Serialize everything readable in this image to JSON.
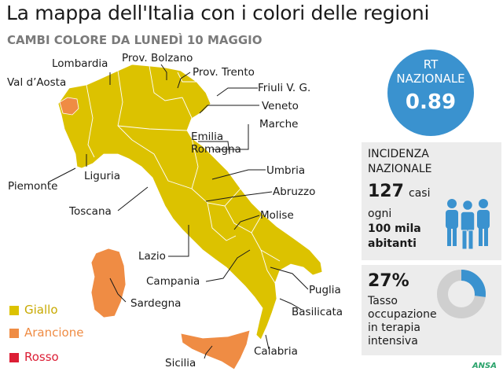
{
  "title": "La mappa dell'Italia con i colori delle regioni",
  "subtitle": "CAMBI COLORE DA LUNEDÌ 10 MAGGIO",
  "colors": {
    "giallo": "#dcc200",
    "arancione": "#ef8c44",
    "rosso": "#dc1e35",
    "accent_blue": "#3a92cf"
  },
  "regions": {
    "lombardia": "Lombardia",
    "prov_bolzano": "Prov. Bolzano",
    "val_daosta": "Val d’Aosta",
    "prov_trento": "Prov. Trento",
    "friuli": "Friuli V. G.",
    "veneto": "Veneto",
    "marche": "Marche",
    "emilia": "Emilia",
    "romagna": "Romagna",
    "liguria": "Liguria",
    "umbria": "Umbria",
    "piemonte": "Piemonte",
    "abruzzo": "Abruzzo",
    "toscana": "Toscana",
    "molise": "Molise",
    "lazio": "Lazio",
    "campania": "Campania",
    "puglia": "Puglia",
    "sardegna": "Sardegna",
    "basilicata": "Basilicata",
    "calabria": "Calabria",
    "sicilia": "Sicilia"
  },
  "rt": {
    "label_line1": "RT",
    "label_line2": "NAZIONALE",
    "value": "0.89"
  },
  "incidenza": {
    "label_line1": "INCIDENZA",
    "label_line2": "NAZIONALE",
    "value": "127",
    "unit": "casi",
    "line_ogni": "ogni",
    "line_mila": "100 mila",
    "line_abitanti": "abitanti",
    "icon": "people-icon"
  },
  "terapia": {
    "value": "27%",
    "line1": "Tasso",
    "line2": "occupazione",
    "line3": "in terapia",
    "line4": "intensiva",
    "fraction": 0.27,
    "icon": "donut-chart-icon"
  },
  "legend": [
    {
      "label": "Giallo",
      "color": "#dcc200"
    },
    {
      "label": "Arancione",
      "color": "#ef8c44"
    },
    {
      "label": "Rosso",
      "color": "#dc1e35"
    }
  ],
  "source": "ANSA"
}
